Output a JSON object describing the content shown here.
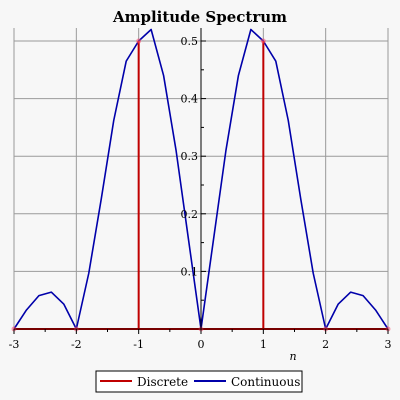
{
  "chart_data": {
    "type": "line",
    "title": "Amplitude Spectrum",
    "xlabel": "n",
    "ylabel": "",
    "xlim": [
      -3,
      3
    ],
    "ylim": [
      0,
      0.52
    ],
    "xticks": [
      "-3",
      "-2",
      "-1",
      "0",
      "1",
      "2",
      "3"
    ],
    "yticks": [
      "0.1",
      "0.2",
      "0.3",
      "0.4",
      "0.5"
    ],
    "grid": true,
    "legend_position": "bottom",
    "series": [
      {
        "name": "Discrete",
        "kind": "stem",
        "color": "#c00000",
        "x": [
          -3,
          -2,
          -1,
          0,
          1,
          2,
          3
        ],
        "y": [
          0,
          0,
          0.5,
          0,
          0.5,
          0,
          0
        ]
      },
      {
        "name": "Continuous",
        "kind": "line",
        "color": "#0000aa",
        "x": [
          -3,
          -2.8,
          -2.6,
          -2.4,
          -2.2,
          -2,
          -1.8,
          -1.6,
          -1.4,
          -1.2,
          -1,
          -0.8,
          -0.6,
          -0.4,
          -0.2,
          0,
          0.2,
          0.4,
          0.6,
          0.8,
          1,
          1.2,
          1.4,
          1.6,
          1.8,
          2,
          2.2,
          2.4,
          2.6,
          2.8,
          3
        ],
        "y": [
          0,
          0.033,
          0.058,
          0.064,
          0.043,
          0,
          0.097,
          0.226,
          0.362,
          0.465,
          0.5,
          0.52,
          0.44,
          0.31,
          0.155,
          0,
          0.155,
          0.31,
          0.44,
          0.52,
          0.5,
          0.465,
          0.362,
          0.226,
          0.097,
          0,
          0.043,
          0.064,
          0.058,
          0.033,
          0
        ]
      }
    ]
  }
}
